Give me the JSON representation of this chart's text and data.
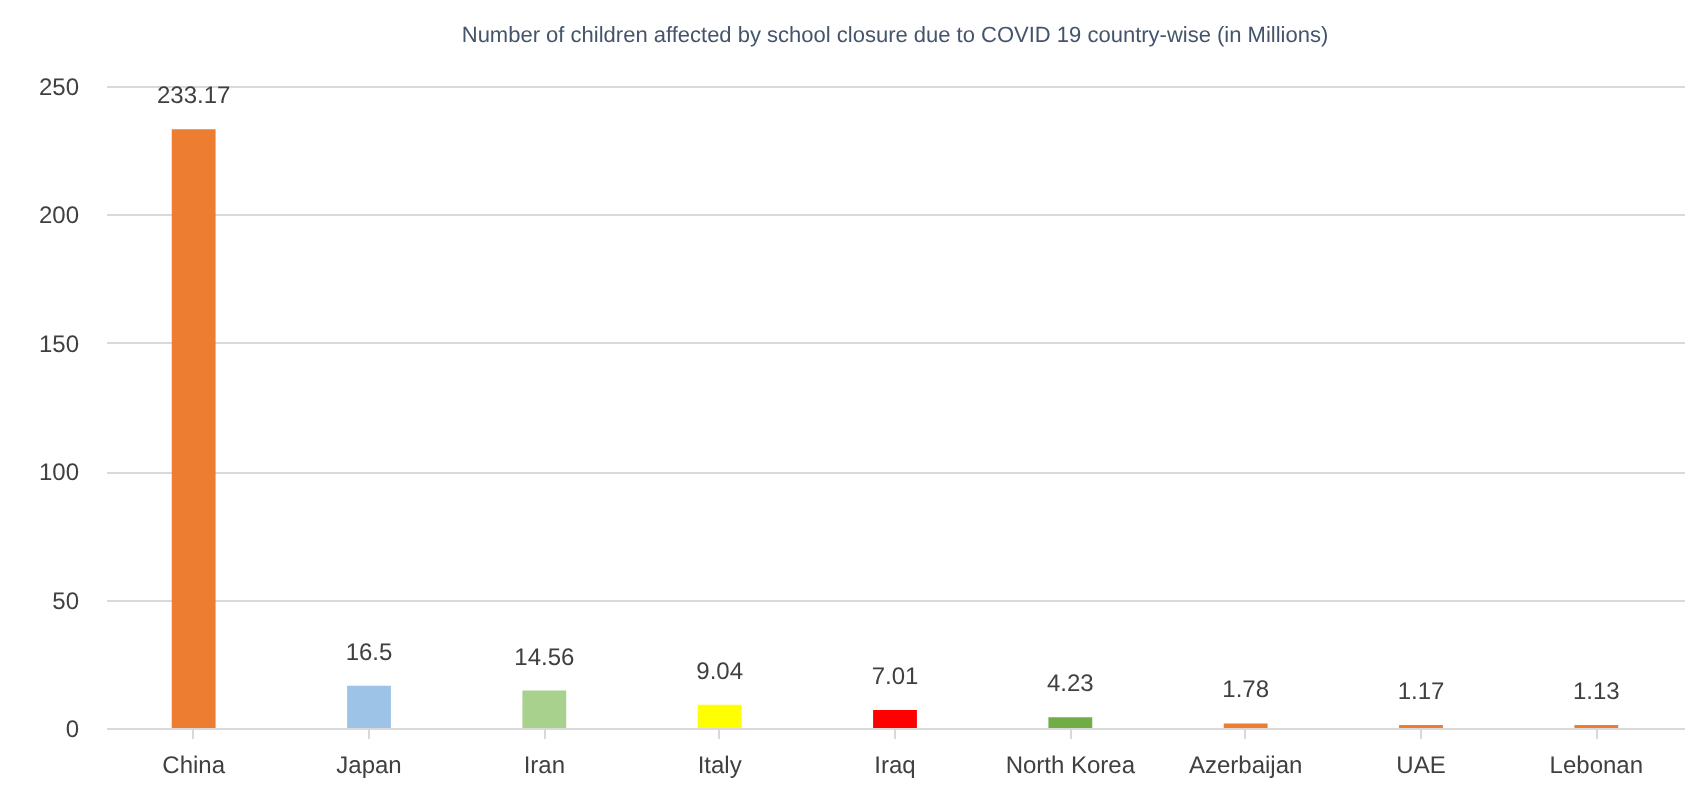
{
  "chart_data": {
    "type": "bar",
    "title": "Number of children affected by school closure due to COVID 19 country-wise (in Millions)",
    "categories": [
      "China",
      "Japan",
      "Iran",
      "Italy",
      "Iraq",
      "North Korea",
      "Azerbaijan",
      "UAE",
      "Lebonan"
    ],
    "values": [
      233.17,
      16.5,
      14.56,
      9.04,
      7.01,
      4.23,
      1.78,
      1.17,
      1.13
    ],
    "colors": [
      "#ed7d31",
      "#9dc3e6",
      "#a9d18e",
      "#ffff00",
      "#ff0000",
      "#70ad47",
      "#ed7d31",
      "#ed7d31",
      "#ed7d31"
    ],
    "ylim": [
      0,
      250
    ],
    "yticks": [
      0,
      50,
      100,
      150,
      200,
      250
    ],
    "grid": "y",
    "data_labels": true
  }
}
